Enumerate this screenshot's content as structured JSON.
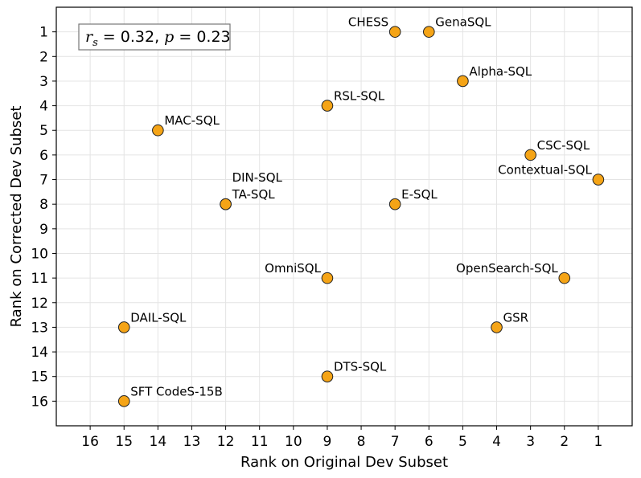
{
  "chart_data": {
    "type": "scatter",
    "title": "",
    "xlabel": "Rank on Original Dev Subset",
    "ylabel": "Rank on Corrected Dev Subset",
    "xlim": [
      17,
      0
    ],
    "ylim": [
      17,
      0
    ],
    "x_inverted": true,
    "y_inverted": true,
    "grid": true,
    "x_ticks": [
      16,
      15,
      14,
      13,
      12,
      11,
      10,
      9,
      8,
      7,
      6,
      5,
      4,
      3,
      2,
      1
    ],
    "y_ticks": [
      1,
      2,
      3,
      4,
      5,
      6,
      7,
      8,
      9,
      10,
      11,
      12,
      13,
      14,
      15,
      16
    ],
    "annotation": {
      "r_symbol": "r",
      "r_sub": "s",
      "r_value": " = 0.32, ",
      "p_symbol": "p",
      "p_value": " = 0.23"
    },
    "marker_color": "#f5a416",
    "marker_edge": "#222222",
    "points": [
      {
        "name": "CHESS",
        "x": 7,
        "y": 1,
        "label_side": "left"
      },
      {
        "name": "GenaSQL",
        "x": 6,
        "y": 1,
        "label_side": "right"
      },
      {
        "name": "Alpha-SQL",
        "x": 5,
        "y": 3,
        "label_side": "right"
      },
      {
        "name": "RSL-SQL",
        "x": 9,
        "y": 4,
        "label_side": "right"
      },
      {
        "name": "MAC-SQL",
        "x": 14,
        "y": 5,
        "label_side": "right"
      },
      {
        "name": "CSC-SQL",
        "x": 3,
        "y": 6,
        "label_side": "right"
      },
      {
        "name": "Contextual-SQL",
        "x": 1,
        "y": 7,
        "label_side": "left"
      },
      {
        "name": "DIN-SQL",
        "x": 12,
        "y": 8,
        "label_side": "right-high"
      },
      {
        "name": "TA-SQL",
        "x": 12,
        "y": 8,
        "label_side": "right"
      },
      {
        "name": "E-SQL",
        "x": 7,
        "y": 8,
        "label_side": "right"
      },
      {
        "name": "OmniSQL",
        "x": 9,
        "y": 11,
        "label_side": "left"
      },
      {
        "name": "OpenSearch-SQL",
        "x": 2,
        "y": 11,
        "label_side": "left"
      },
      {
        "name": "DAIL-SQL",
        "x": 15,
        "y": 13,
        "label_side": "right"
      },
      {
        "name": "GSR",
        "x": 4,
        "y": 13,
        "label_side": "right"
      },
      {
        "name": "DTS-SQL",
        "x": 9,
        "y": 15,
        "label_side": "right"
      },
      {
        "name": "SFT CodeS-15B",
        "x": 15,
        "y": 16,
        "label_side": "right"
      }
    ]
  }
}
